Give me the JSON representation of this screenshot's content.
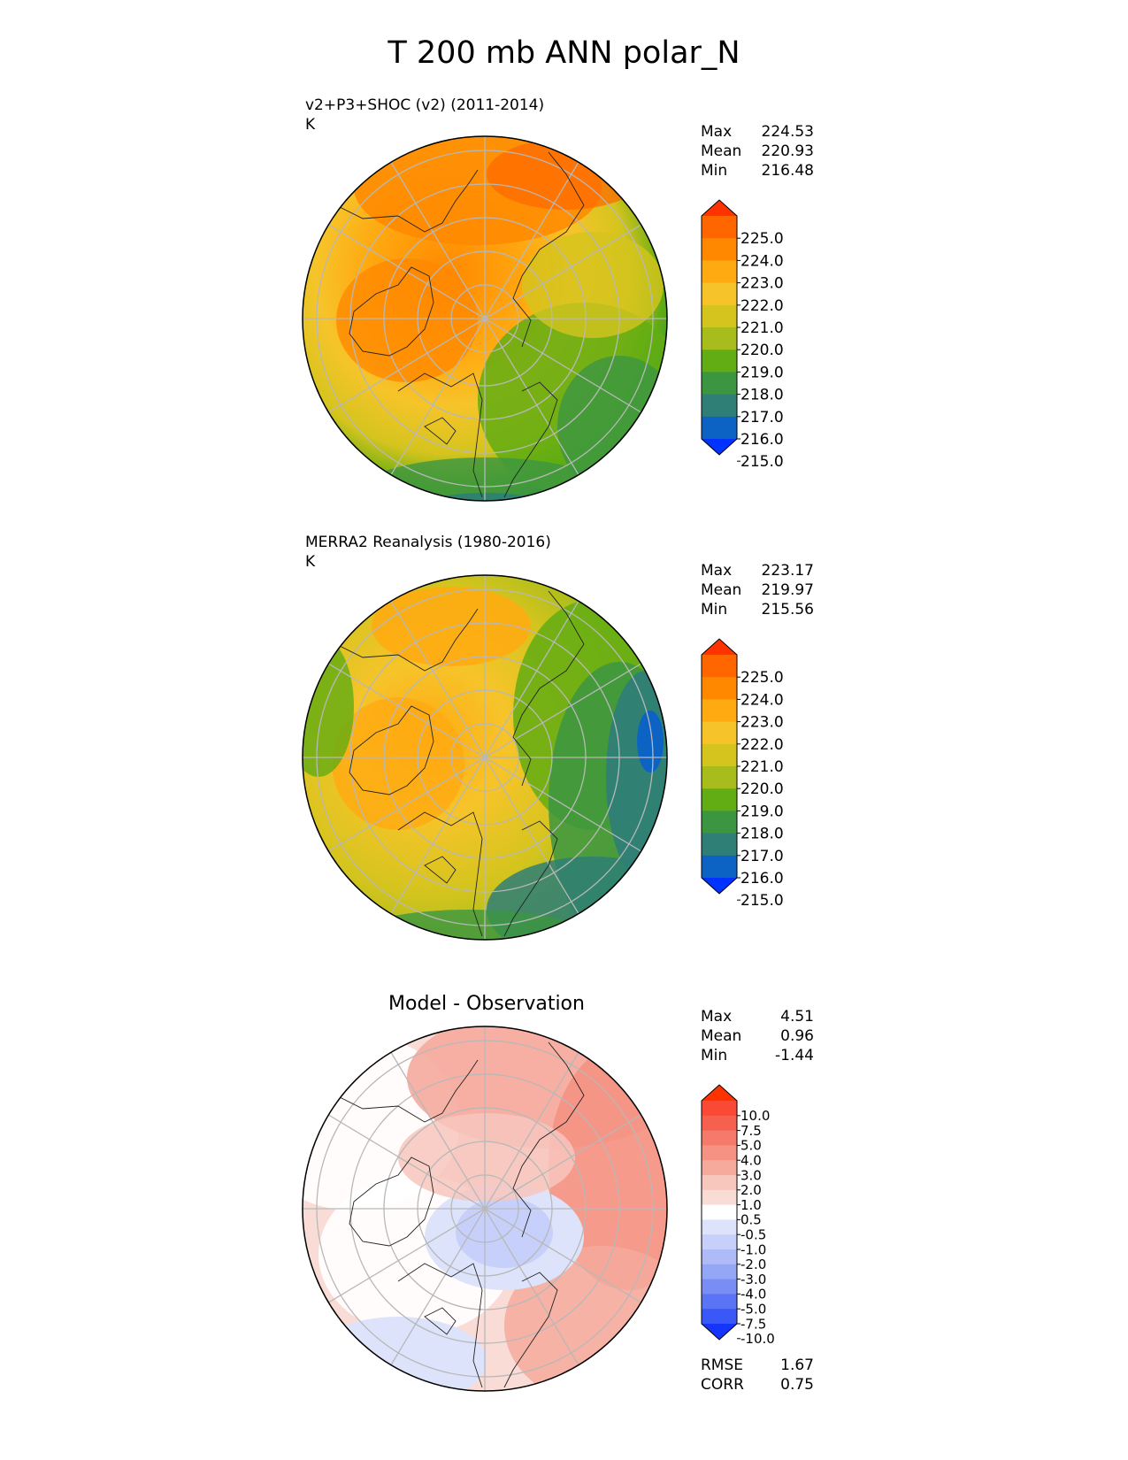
{
  "title": "T 200 mb ANN polar_N",
  "panels": [
    {
      "label": "v2+P3+SHOC (v2) (2011-2014)",
      "units": "K",
      "stats": [
        {
          "name": "Max",
          "value": "224.53"
        },
        {
          "name": "Mean",
          "value": "220.93"
        },
        {
          "name": "Min",
          "value": "216.48"
        }
      ],
      "colorbar": {
        "labels": [
          "225.0",
          "224.0",
          "223.0",
          "222.0",
          "221.0",
          "220.0",
          "219.0",
          "218.0",
          "217.0",
          "216.0",
          "215.0"
        ],
        "colors": [
          "#ff3300",
          "#ff6600",
          "#ff8800",
          "#ffaa11",
          "#f6c42a",
          "#d5c41e",
          "#a7bd1b",
          "#62ad13",
          "#3c9641",
          "#2f7f76",
          "#0d63c4",
          "#0033ff"
        ]
      }
    },
    {
      "label": "MERRA2 Reanalysis (1980-2016)",
      "units": "K",
      "stats": [
        {
          "name": "Max",
          "value": "223.17"
        },
        {
          "name": "Mean",
          "value": "219.97"
        },
        {
          "name": "Min",
          "value": "215.56"
        }
      ],
      "colorbar": {
        "labels": [
          "225.0",
          "224.0",
          "223.0",
          "222.0",
          "221.0",
          "220.0",
          "219.0",
          "218.0",
          "217.0",
          "216.0",
          "215.0"
        ],
        "colors": [
          "#ff3300",
          "#ff6600",
          "#ff8800",
          "#ffaa11",
          "#f6c42a",
          "#d5c41e",
          "#a7bd1b",
          "#62ad13",
          "#3c9641",
          "#2f7f76",
          "#0d63c4",
          "#0033ff"
        ]
      }
    },
    {
      "title": "Model - Observation",
      "stats": [
        {
          "name": "Max",
          "value": "4.51"
        },
        {
          "name": "Mean",
          "value": "0.96"
        },
        {
          "name": "Min",
          "value": "-1.44"
        }
      ],
      "metrics": [
        {
          "name": "RMSE",
          "value": "1.67"
        },
        {
          "name": "CORR",
          "value": "0.75"
        }
      ],
      "colorbar": {
        "labels": [
          "10.0",
          "7.5",
          "5.0",
          "4.0",
          "3.0",
          "2.0",
          "1.0",
          "0.5",
          "-0.5",
          "-1.0",
          "-2.0",
          "-3.0",
          "-4.0",
          "-5.0",
          "-7.5",
          "-10.0"
        ],
        "colors": [
          "#ff3300",
          "#fa4a35",
          "#f6604f",
          "#f57a6b",
          "#f59283",
          "#f5aa9c",
          "#f7c6bd",
          "#fadcd6",
          "#ffffff",
          "#dde3fb",
          "#c6d0fa",
          "#aebbf7",
          "#94a6f6",
          "#788ef5",
          "#5a74f5",
          "#3a57f7",
          "#1535fc"
        ]
      }
    }
  ]
}
